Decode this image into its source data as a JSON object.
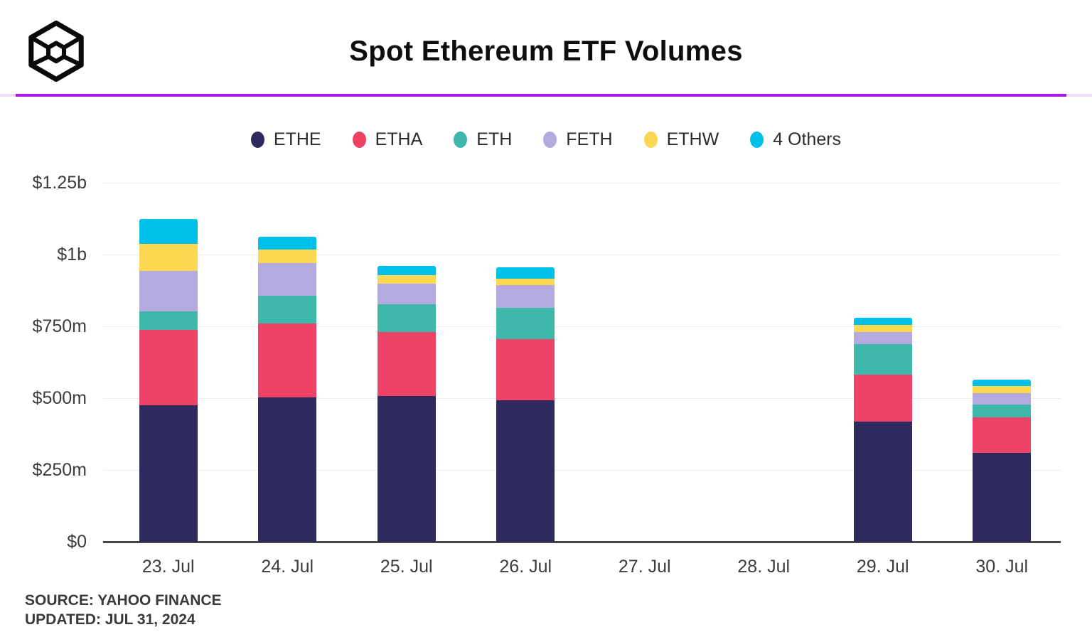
{
  "header": {
    "title": "Spot Ethereum ETF Volumes",
    "logo": "wireframe-cube-logo"
  },
  "chart_data": {
    "type": "bar",
    "stacked": true,
    "title": "Spot Ethereum ETF Volumes",
    "unit": "USD millions",
    "categories": [
      "23. Jul",
      "24. Jul",
      "25. Jul",
      "26. Jul",
      "27. Jul",
      "28. Jul",
      "29. Jul",
      "30. Jul"
    ],
    "series": [
      {
        "name": "ETHE",
        "color": "#2f2a5d",
        "values": [
          475,
          502,
          507,
          493,
          0,
          0,
          418,
          309
        ]
      },
      {
        "name": "ETHA",
        "color": "#ee4266",
        "values": [
          263,
          258,
          223,
          212,
          0,
          0,
          164,
          124
        ]
      },
      {
        "name": "ETH",
        "color": "#3db8aa",
        "values": [
          64,
          96,
          97,
          109,
          0,
          0,
          106,
          45
        ]
      },
      {
        "name": "FETH",
        "color": "#b4aadf",
        "values": [
          141,
          114,
          71,
          80,
          0,
          0,
          42,
          39
        ]
      },
      {
        "name": "ETHW",
        "color": "#fbd850",
        "values": [
          94,
          47,
          30,
          22,
          0,
          0,
          25,
          25
        ]
      },
      {
        "name": "4 Others",
        "color": "#00c0ea",
        "values": [
          87,
          45,
          32,
          39,
          0,
          0,
          25,
          22
        ]
      }
    ],
    "totals": [
      1124,
      1062,
      960,
      955,
      0,
      0,
      780,
      564
    ],
    "yaxis": {
      "ticks": [
        {
          "label": "$1.25b",
          "value": 1250
        },
        {
          "label": "$1b",
          "value": 1000
        },
        {
          "label": "$750m",
          "value": 750
        },
        {
          "label": "$500m",
          "value": 500
        },
        {
          "label": "$250m",
          "value": 250
        },
        {
          "label": "$0",
          "value": 0
        }
      ],
      "max": 1250
    },
    "grid": true,
    "legend_position": "top"
  },
  "footer": {
    "source": "SOURCE: YAHOO FINANCE",
    "updated": "UPDATED: JUL 31, 2024"
  },
  "colors": {
    "divider": "#a816e6",
    "axis": "#474747",
    "gridline": "#ededed"
  }
}
